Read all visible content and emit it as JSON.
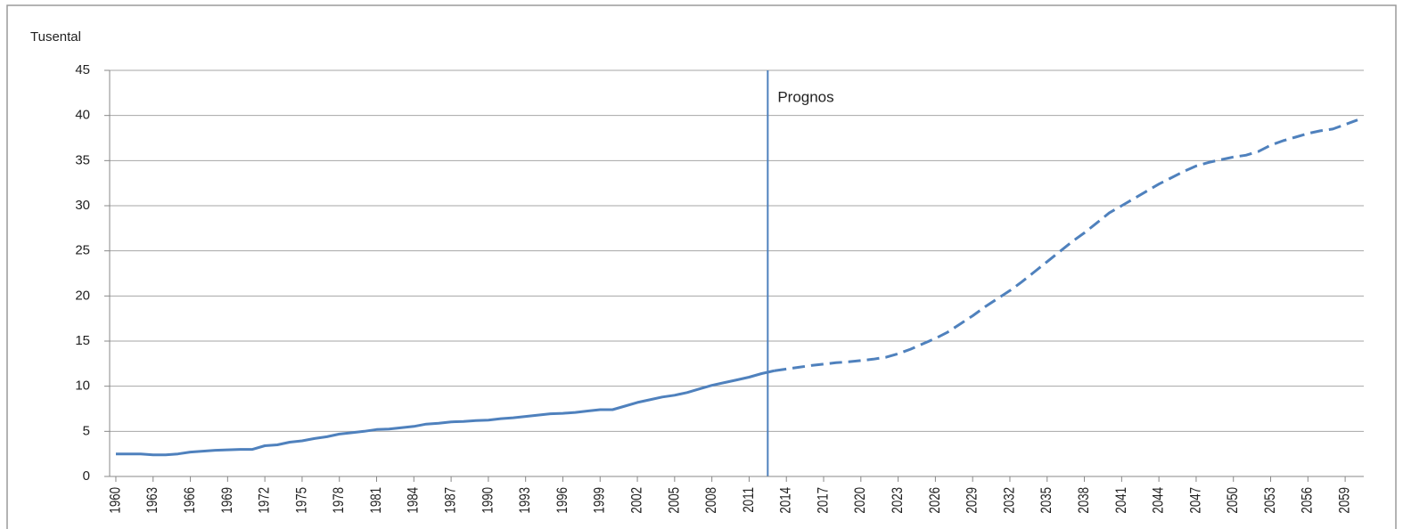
{
  "chart_data": {
    "type": "line",
    "y_label": "Tusental",
    "x": [
      1960,
      1961,
      1962,
      1963,
      1964,
      1965,
      1966,
      1967,
      1968,
      1969,
      1970,
      1971,
      1972,
      1973,
      1974,
      1975,
      1976,
      1977,
      1978,
      1979,
      1980,
      1981,
      1982,
      1983,
      1984,
      1985,
      1986,
      1987,
      1988,
      1989,
      1990,
      1991,
      1992,
      1993,
      1994,
      1995,
      1996,
      1997,
      1998,
      1999,
      2000,
      2001,
      2002,
      2003,
      2004,
      2005,
      2006,
      2007,
      2008,
      2009,
      2010,
      2011,
      2012,
      2013,
      2014,
      2015,
      2016,
      2017,
      2018,
      2019,
      2020,
      2021,
      2022,
      2023,
      2024,
      2025,
      2026,
      2027,
      2028,
      2029,
      2030,
      2031,
      2032,
      2033,
      2034,
      2035,
      2036,
      2037,
      2038,
      2039,
      2040,
      2041,
      2042,
      2043,
      2044,
      2045,
      2046,
      2047,
      2048,
      2049,
      2050,
      2051,
      2052,
      2053,
      2054,
      2055,
      2056,
      2057,
      2058,
      2059,
      2060
    ],
    "series": [
      {
        "color": "#4f81bd",
        "dashed": false,
        "values": [
          2.5,
          2.5,
          2.5,
          2.4,
          2.4,
          2.5,
          2.7,
          2.8,
          2.9,
          2.95,
          3.0,
          3.0,
          3.4,
          3.5,
          3.8,
          3.95,
          4.2,
          4.4,
          4.7,
          4.85,
          5.0,
          5.2,
          5.25,
          5.4,
          5.55,
          5.8,
          5.9,
          6.05,
          6.1,
          6.2,
          6.25,
          6.4,
          6.5,
          6.65,
          6.8,
          6.95,
          7.0,
          7.1,
          7.25,
          7.4,
          7.4,
          7.8,
          8.2,
          8.5,
          8.8,
          9.0,
          9.3,
          9.7,
          10.1,
          10.4,
          10.7,
          11.0,
          11.4,
          11.7,
          null,
          null,
          null,
          null,
          null,
          null,
          null,
          null,
          null,
          null,
          null,
          null,
          null,
          null,
          null,
          null,
          null,
          null,
          null,
          null,
          null,
          null,
          null,
          null,
          null,
          null,
          null,
          null,
          null,
          null,
          null,
          null,
          null,
          null,
          null,
          null,
          null,
          null,
          null,
          null,
          null,
          null,
          null,
          null,
          null,
          null,
          null
        ]
      },
      {
        "color": "#4f81bd",
        "dashed": true,
        "values": [
          null,
          null,
          null,
          null,
          null,
          null,
          null,
          null,
          null,
          null,
          null,
          null,
          null,
          null,
          null,
          null,
          null,
          null,
          null,
          null,
          null,
          null,
          null,
          null,
          null,
          null,
          null,
          null,
          null,
          null,
          null,
          null,
          null,
          null,
          null,
          null,
          null,
          null,
          null,
          null,
          null,
          null,
          null,
          null,
          null,
          null,
          null,
          null,
          null,
          null,
          null,
          null,
          null,
          11.7,
          11.9,
          12.1,
          12.3,
          12.45,
          12.6,
          12.7,
          12.85,
          13.0,
          13.2,
          13.6,
          14.1,
          14.7,
          15.3,
          16.0,
          16.9,
          17.8,
          18.8,
          19.7,
          20.6,
          21.6,
          22.7,
          23.8,
          24.9,
          26.0,
          27.0,
          28.1,
          29.2,
          30.0,
          30.8,
          31.6,
          32.4,
          33.1,
          33.8,
          34.4,
          34.8,
          35.1,
          35.4,
          35.6,
          36.0,
          36.7,
          37.2,
          37.6,
          38.0,
          38.3,
          38.5,
          39.0,
          39.5
        ]
      }
    ],
    "xlim": [
      1959.5,
      2060.5
    ],
    "xticks": [
      1960,
      1963,
      1966,
      1969,
      1972,
      1975,
      1978,
      1981,
      1984,
      1987,
      1990,
      1993,
      1996,
      1999,
      2002,
      2005,
      2008,
      2011,
      2014,
      2017,
      2020,
      2023,
      2026,
      2029,
      2032,
      2035,
      2038,
      2041,
      2044,
      2047,
      2050,
      2053,
      2056,
      2059
    ],
    "ylim": [
      0,
      45
    ],
    "yticks": [
      0,
      5,
      10,
      15,
      20,
      25,
      30,
      35,
      40,
      45
    ],
    "grid": true,
    "annotations": [
      {
        "text": "Prognos",
        "x": 2012.5
      }
    ]
  }
}
